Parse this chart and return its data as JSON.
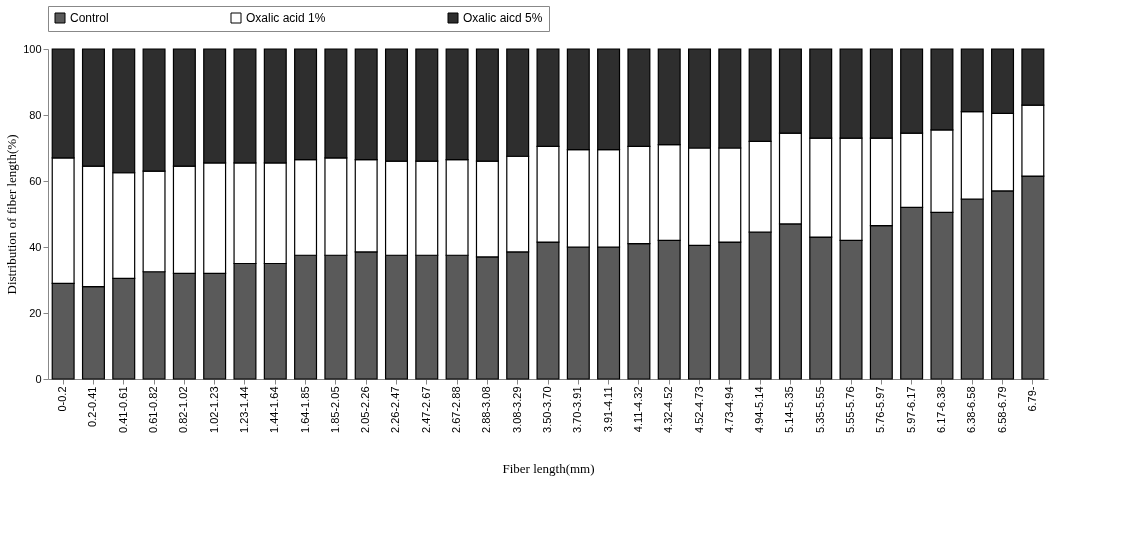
{
  "chart_data": {
    "type": "bar",
    "stacked": true,
    "xlabel": "Fiber length(mm)",
    "ylabel": "Distribution of fiber length(%)",
    "categories": [
      "0-0.2",
      "0.2-0.41",
      "0.41-0.61",
      "0.61-0.82",
      "0.82-1.02",
      "1.02-1.23",
      "1.23-1.44",
      "1.44-1.64",
      "1.64-1.85",
      "1.85-2.05",
      "2.05-2.26",
      "2.26-2.47",
      "2.47-2.67",
      "2.67-2.88",
      "2.88-3.08",
      "3.08-3.29",
      "3.50-3.70",
      "3.70-3.91",
      "3.91-4.11",
      "4.11-4.32",
      "4.32-4.52",
      "4.52-4.73",
      "4.73-4.94",
      "4.94-5.14",
      "5.14-5.35",
      "5.35-5.55",
      "5.55-5.76",
      "5.76-5.97",
      "5.97-6.17",
      "6.17-6.38",
      "6.38-6.58",
      "6.58-6.79",
      "6.79-"
    ],
    "series": [
      {
        "name": "Control",
        "color": "#5a5a5a",
        "values": [
          29,
          28,
          30.5,
          32.5,
          32,
          32,
          35,
          35,
          37.5,
          37.5,
          38.5,
          37.5,
          37.5,
          37.5,
          37,
          38.5,
          41.5,
          40,
          40,
          41,
          42,
          40.5,
          41.5,
          44.5,
          47,
          43,
          42,
          46.5,
          52,
          50.5,
          54.5,
          57,
          61.5
        ]
      },
      {
        "name": "Oxalic acid 1%",
        "color": "#ffffff",
        "values": [
          38,
          36.5,
          32,
          30.5,
          32.5,
          33.5,
          30.5,
          30.5,
          29,
          29.5,
          28,
          28.5,
          28.5,
          29,
          29,
          29,
          29,
          29.5,
          29.5,
          29.5,
          29,
          29.5,
          28.5,
          27.5,
          27.5,
          30,
          31,
          26.5,
          22.5,
          25,
          26.5,
          23.5,
          21.5
        ]
      },
      {
        "name": "Oxalic aicd 5%",
        "color": "#2e2e2e",
        "values": [
          33,
          35.5,
          37.5,
          37,
          35.5,
          34.5,
          34.5,
          34.5,
          33.5,
          33,
          33.5,
          34,
          34,
          33.5,
          34,
          32.5,
          29.5,
          30.5,
          30.5,
          29.5,
          29,
          30,
          30,
          28,
          25.5,
          27,
          27,
          27,
          25.5,
          24.5,
          19,
          19.5,
          17
        ]
      }
    ],
    "ylim": [
      0,
      100
    ],
    "yticks": [
      0,
      20,
      40,
      60,
      80,
      100
    ],
    "grid": false,
    "legend": "top"
  }
}
